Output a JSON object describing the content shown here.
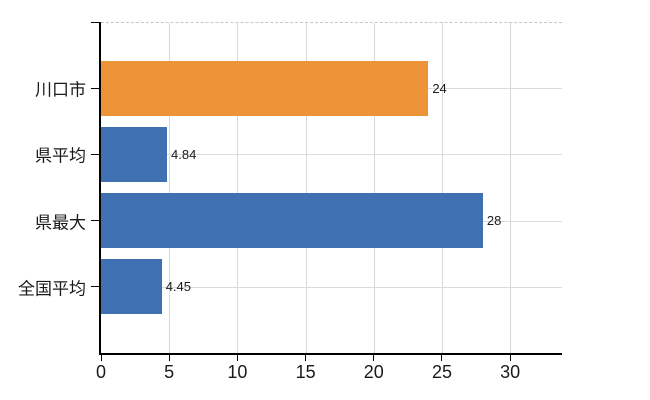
{
  "chart_data": {
    "type": "bar",
    "orientation": "horizontal",
    "title": "",
    "xlabel": "",
    "ylabel": "",
    "categories": [
      "川口市",
      "県平均",
      "県最大",
      "全国平均"
    ],
    "values": [
      24,
      4.84,
      28,
      4.45
    ],
    "value_labels": [
      "24",
      "4.84",
      "28",
      "4.45"
    ],
    "bar_colors": [
      "#ED9438",
      "#3E70B2",
      "#3E70B2",
      "#3E70B2"
    ],
    "highlight_category": "川口市",
    "x_ticks": [
      0,
      5,
      10,
      15,
      20,
      25,
      30
    ],
    "x_tick_labels": [
      "0",
      "5",
      "10",
      "15",
      "20",
      "25",
      "30"
    ],
    "xlim": [
      0,
      33.8
    ],
    "grid": "on",
    "legend": "none"
  },
  "colors": {
    "highlight_bar": "#ED9438",
    "default_bar": "#3E70B2",
    "gridline": "#D9D9D9",
    "top_border_dashed": "#CCC4CA",
    "axis": "#000000",
    "text": "#1A1A1A",
    "background": "#FFFFFF"
  }
}
